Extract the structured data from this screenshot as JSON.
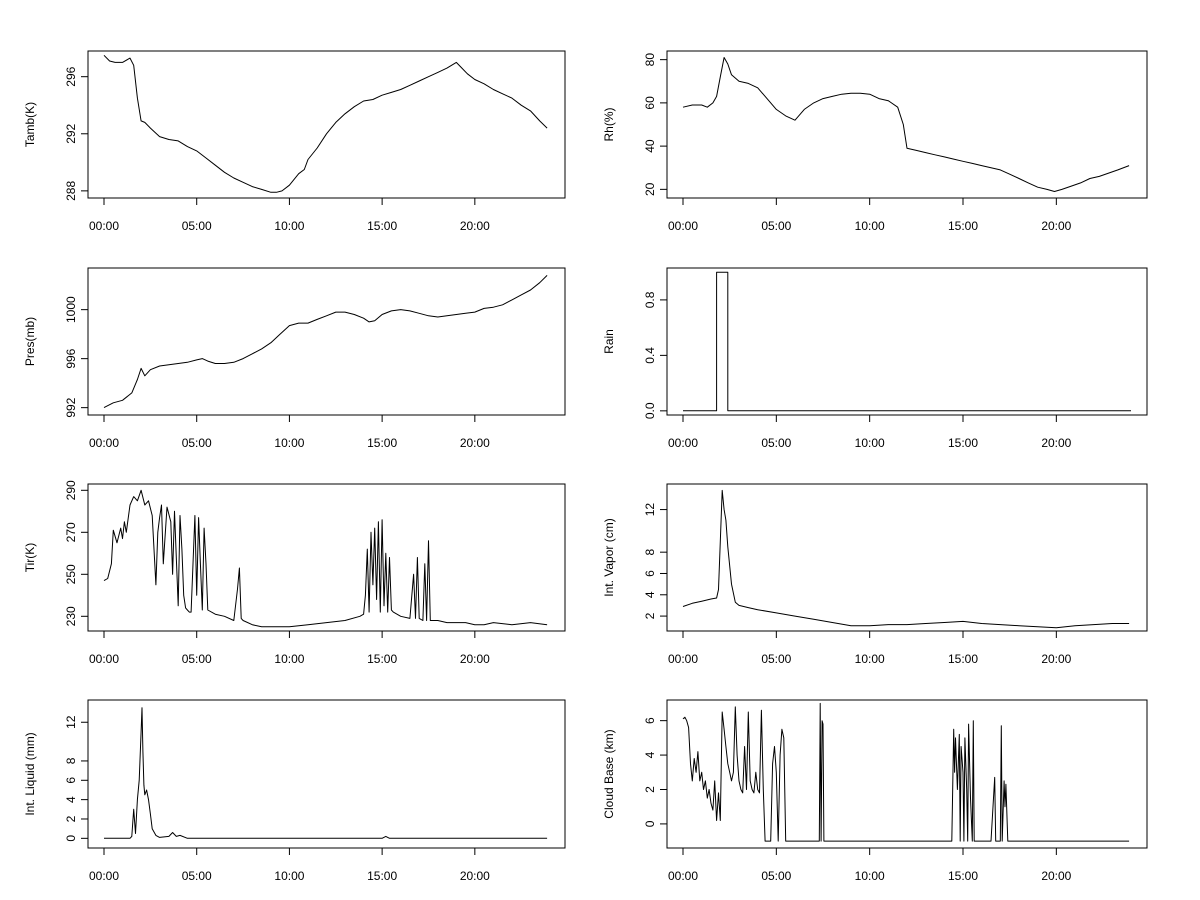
{
  "chart_data": [
    {
      "type": "line",
      "ylabel": "Tamb(K)",
      "xlim": [
        0,
        24
      ],
      "xticks": [
        0,
        5,
        10,
        15,
        20
      ],
      "xtick_labels": [
        "00:00",
        "05:00",
        "10:00",
        "15:00",
        "20:00"
      ],
      "ylim": [
        287.5,
        297.8
      ],
      "yticks": [
        288,
        292,
        296
      ],
      "ytick_labels": [
        "288",
        "292",
        "296"
      ],
      "x": [
        0,
        0.3,
        0.6,
        1.0,
        1.4,
        1.6,
        1.8,
        2.0,
        2.2,
        2.5,
        3.0,
        3.5,
        4.0,
        4.5,
        5.0,
        5.5,
        6.0,
        6.5,
        7.0,
        7.5,
        8.0,
        8.5,
        9.0,
        9.3,
        9.6,
        10.0,
        10.5,
        10.8,
        11.0,
        11.5,
        12.0,
        12.5,
        13.0,
        13.5,
        14.0,
        14.5,
        15.0,
        15.5,
        16.0,
        16.5,
        17.0,
        17.5,
        18.0,
        18.5,
        19.0,
        19.3,
        19.6,
        20.0,
        20.5,
        21.0,
        21.5,
        22.0,
        22.5,
        23.0,
        23.5,
        23.9
      ],
      "y": [
        297.5,
        297.1,
        297.0,
        297.0,
        297.3,
        296.8,
        294.5,
        292.9,
        292.8,
        292.4,
        291.8,
        291.6,
        291.5,
        291.1,
        290.8,
        290.3,
        289.8,
        289.3,
        288.9,
        288.6,
        288.3,
        288.1,
        287.9,
        287.9,
        288.0,
        288.4,
        289.2,
        289.5,
        290.2,
        291.0,
        292.0,
        292.8,
        293.4,
        293.9,
        294.3,
        294.4,
        294.7,
        294.9,
        295.1,
        295.4,
        295.7,
        296.0,
        296.3,
        296.6,
        297.0,
        296.6,
        296.2,
        295.8,
        295.5,
        295.1,
        294.8,
        294.5,
        294.0,
        293.6,
        292.9,
        292.4
      ]
    },
    {
      "type": "line",
      "ylabel": "Rh(%)",
      "xlim": [
        0,
        24
      ],
      "xticks": [
        0,
        5,
        10,
        15,
        20
      ],
      "xtick_labels": [
        "00:00",
        "05:00",
        "10:00",
        "15:00",
        "20:00"
      ],
      "ylim": [
        16,
        84
      ],
      "yticks": [
        20,
        40,
        60,
        80
      ],
      "ytick_labels": [
        "20",
        "40",
        "60",
        "80"
      ],
      "x": [
        0,
        0.5,
        1.0,
        1.3,
        1.6,
        1.8,
        2.0,
        2.2,
        2.4,
        2.6,
        3.0,
        3.5,
        4.0,
        4.5,
        5.0,
        5.5,
        6.0,
        6.5,
        7.0,
        7.5,
        8.0,
        8.5,
        9.0,
        9.5,
        10.0,
        10.5,
        11.0,
        11.5,
        11.8,
        12.0,
        12.5,
        13.0,
        13.5,
        14.0,
        14.5,
        15.0,
        15.5,
        16.0,
        16.5,
        17.0,
        17.5,
        18.0,
        18.5,
        19.0,
        19.5,
        19.9,
        20.3,
        20.8,
        21.3,
        21.8,
        22.3,
        22.8,
        23.3,
        23.9
      ],
      "y": [
        58,
        59,
        59,
        58,
        60,
        63,
        72,
        81,
        78,
        73,
        70,
        69,
        67,
        62,
        57,
        54,
        52,
        57,
        60,
        62,
        63,
        64,
        64.5,
        64.5,
        64,
        62,
        61,
        58,
        50,
        39,
        38,
        37,
        36,
        35,
        34,
        33,
        32,
        31,
        30,
        29,
        27,
        25,
        23,
        21,
        20,
        19,
        20,
        21.5,
        23,
        25,
        26,
        27.5,
        29,
        31
      ]
    },
    {
      "type": "line",
      "ylabel": "Pres(mb)",
      "xlim": [
        0,
        24
      ],
      "xticks": [
        0,
        5,
        10,
        15,
        20
      ],
      "xtick_labels": [
        "00:00",
        "05:00",
        "10:00",
        "15:00",
        "20:00"
      ],
      "ylim": [
        991.4,
        1003.4
      ],
      "yticks": [
        992,
        996,
        1000
      ],
      "ytick_labels": [
        "992",
        "996",
        "1000"
      ],
      "x": [
        0,
        0.5,
        1.0,
        1.5,
        1.8,
        2.0,
        2.2,
        2.5,
        3.0,
        3.5,
        4.0,
        4.5,
        5.0,
        5.3,
        5.6,
        6.0,
        6.5,
        7.0,
        7.5,
        8.0,
        8.5,
        9.0,
        9.5,
        10.0,
        10.5,
        11.0,
        11.5,
        12.0,
        12.5,
        13.0,
        13.5,
        14.0,
        14.3,
        14.6,
        15.0,
        15.5,
        16.0,
        16.5,
        17.0,
        17.5,
        18.0,
        18.5,
        19.0,
        19.5,
        20.0,
        20.5,
        21.0,
        21.5,
        22.0,
        22.5,
        23.0,
        23.5,
        23.9
      ],
      "y": [
        992.0,
        992.4,
        992.6,
        993.2,
        994.3,
        995.2,
        994.6,
        995.1,
        995.4,
        995.5,
        995.6,
        995.7,
        995.9,
        996.0,
        995.8,
        995.6,
        995.6,
        995.7,
        996.0,
        996.4,
        996.8,
        997.3,
        998.0,
        998.7,
        998.9,
        998.9,
        999.2,
        999.5,
        999.8,
        999.8,
        999.6,
        999.3,
        999.0,
        999.1,
        999.6,
        999.9,
        1000.0,
        999.9,
        999.7,
        999.5,
        999.4,
        999.5,
        999.6,
        999.7,
        999.8,
        1000.1,
        1000.2,
        1000.4,
        1000.8,
        1001.2,
        1001.6,
        1002.2,
        1002.8
      ]
    },
    {
      "type": "line",
      "ylabel": "Rain",
      "xlim": [
        0,
        24
      ],
      "xticks": [
        0,
        5,
        10,
        15,
        20
      ],
      "xtick_labels": [
        "00:00",
        "05:00",
        "10:00",
        "15:00",
        "20:00"
      ],
      "ylim": [
        -0.03,
        1.03
      ],
      "yticks": [
        0,
        0.4,
        0.8
      ],
      "ytick_labels": [
        "0.0",
        "0.4",
        "0.8"
      ],
      "x": [
        0,
        1.8,
        1.8,
        1.9,
        1.9,
        2.4,
        2.4,
        24.0
      ],
      "y": [
        0,
        0,
        1,
        1,
        1,
        1,
        0,
        0
      ]
    },
    {
      "type": "line",
      "ylabel": "Tir(K)",
      "xlim": [
        0,
        24
      ],
      "xticks": [
        0,
        5,
        10,
        15,
        20
      ],
      "xtick_labels": [
        "00:00",
        "05:00",
        "10:00",
        "15:00",
        "20:00"
      ],
      "ylim": [
        223,
        293
      ],
      "yticks": [
        230,
        250,
        270,
        290
      ],
      "ytick_labels": [
        "230",
        "250",
        "270",
        "290"
      ],
      "x": [
        0,
        0.2,
        0.4,
        0.5,
        0.7,
        0.9,
        1.0,
        1.1,
        1.2,
        1.4,
        1.6,
        1.8,
        2.0,
        2.2,
        2.4,
        2.6,
        2.8,
        2.9,
        3.0,
        3.1,
        3.2,
        3.4,
        3.6,
        3.7,
        3.8,
        4.0,
        4.1,
        4.2,
        4.3,
        4.4,
        4.5,
        4.6,
        4.7,
        4.9,
        5.0,
        5.1,
        5.2,
        5.3,
        5.4,
        5.5,
        5.6,
        6.0,
        6.5,
        7.0,
        7.2,
        7.3,
        7.4,
        7.5,
        8.0,
        8.5,
        9.0,
        9.5,
        10.0,
        11.0,
        12.0,
        13.0,
        13.8,
        14.0,
        14.1,
        14.2,
        14.3,
        14.4,
        14.5,
        14.6,
        14.7,
        14.8,
        14.9,
        15.0,
        15.1,
        15.2,
        15.3,
        15.4,
        15.5,
        15.6,
        16.0,
        16.5,
        16.7,
        16.8,
        16.9,
        17.0,
        17.2,
        17.3,
        17.4,
        17.5,
        17.6,
        18.0,
        18.5,
        19.0,
        19.5,
        20.0,
        20.5,
        21.0,
        22.0,
        23.0,
        23.9
      ],
      "y": [
        247,
        248,
        255,
        271,
        265,
        272,
        267,
        275,
        270,
        283,
        287,
        285,
        290,
        283,
        285,
        278,
        245,
        270,
        277,
        283,
        255,
        282,
        275,
        250,
        280,
        235,
        278,
        262,
        240,
        234,
        233,
        232,
        232,
        278,
        240,
        277,
        255,
        233,
        272,
        255,
        233,
        231,
        230,
        228,
        243,
        253,
        229,
        228,
        226,
        225,
        225,
        225,
        225,
        226,
        227,
        228,
        230,
        231,
        240,
        262,
        232,
        270,
        245,
        272,
        238,
        275,
        232,
        276,
        235,
        260,
        232,
        258,
        233,
        232,
        230,
        229,
        250,
        229,
        258,
        229,
        228,
        255,
        228,
        266,
        228,
        228,
        227,
        227,
        227,
        226,
        226,
        227,
        226,
        227,
        226
      ]
    },
    {
      "type": "line",
      "ylabel": "Int. Vapor (cm)",
      "xlim": [
        0,
        24
      ],
      "xticks": [
        0,
        5,
        10,
        15,
        20
      ],
      "xtick_labels": [
        "00:00",
        "05:00",
        "10:00",
        "15:00",
        "20:00"
      ],
      "ylim": [
        0.6,
        14.4
      ],
      "yticks": [
        2,
        4,
        6,
        8,
        12
      ],
      "ytick_labels": [
        "2",
        "4",
        "6",
        "8",
        "12"
      ],
      "x": [
        0,
        0.5,
        1.0,
        1.5,
        1.8,
        1.9,
        2.0,
        2.1,
        2.2,
        2.3,
        2.4,
        2.6,
        2.8,
        3.0,
        3.5,
        4.0,
        5.0,
        6.0,
        7.0,
        8.0,
        9.0,
        10.0,
        11.0,
        12.0,
        13.0,
        14.0,
        15.0,
        16.0,
        17.0,
        18.0,
        19.0,
        20.0,
        21.0,
        22.0,
        23.0,
        23.9
      ],
      "y": [
        2.9,
        3.2,
        3.4,
        3.6,
        3.7,
        4.5,
        9.0,
        13.8,
        12.0,
        11.0,
        8.5,
        5.0,
        3.3,
        3.0,
        2.8,
        2.6,
        2.3,
        2.0,
        1.7,
        1.4,
        1.1,
        1.1,
        1.2,
        1.2,
        1.3,
        1.4,
        1.5,
        1.3,
        1.2,
        1.1,
        1.0,
        0.9,
        1.1,
        1.2,
        1.3,
        1.3
      ]
    },
    {
      "type": "line",
      "ylabel": "Int. Liquid (mm)",
      "xlim": [
        0,
        24
      ],
      "xticks": [
        0,
        5,
        10,
        15,
        20
      ],
      "xtick_labels": [
        "00:00",
        "05:00",
        "10:00",
        "15:00",
        "20:00"
      ],
      "ylim": [
        -1.0,
        14.3
      ],
      "yticks": [
        0,
        2,
        4,
        6,
        8,
        12
      ],
      "ytick_labels": [
        "0",
        "2",
        "4",
        "6",
        "8",
        "12"
      ],
      "x": [
        0,
        1.4,
        1.5,
        1.6,
        1.7,
        1.8,
        1.9,
        2.0,
        2.05,
        2.1,
        2.15,
        2.2,
        2.3,
        2.4,
        2.5,
        2.6,
        2.8,
        3.0,
        3.5,
        3.7,
        3.9,
        4.1,
        4.5,
        8.0,
        15.0,
        15.2,
        15.4,
        20.0,
        23.9
      ],
      "y": [
        0,
        0,
        0.2,
        3.0,
        0.5,
        4.0,
        6.0,
        11.0,
        13.5,
        9.0,
        5.5,
        4.5,
        5.0,
        4.0,
        2.5,
        1.0,
        0.3,
        0.1,
        0.2,
        0.6,
        0.2,
        0.3,
        0,
        0,
        0,
        0.2,
        0,
        0,
        0
      ]
    },
    {
      "type": "line",
      "ylabel": "Cloud Base (km)",
      "xlim": [
        0,
        24
      ],
      "xticks": [
        0,
        5,
        10,
        15,
        20
      ],
      "xtick_labels": [
        "00:00",
        "05:00",
        "10:00",
        "15:00",
        "20:00"
      ],
      "ylim": [
        -1.4,
        7.2
      ],
      "yticks": [
        0,
        2,
        4,
        6
      ],
      "ytick_labels": [
        "0",
        "2",
        "4",
        "6"
      ],
      "x": [
        0,
        0.1,
        0.2,
        0.3,
        0.4,
        0.5,
        0.6,
        0.7,
        0.8,
        0.9,
        1.0,
        1.1,
        1.2,
        1.3,
        1.4,
        1.5,
        1.6,
        1.7,
        1.8,
        1.9,
        2.0,
        2.1,
        2.2,
        2.3,
        2.4,
        2.5,
        2.6,
        2.7,
        2.8,
        2.9,
        3.0,
        3.1,
        3.2,
        3.3,
        3.4,
        3.5,
        3.6,
        3.7,
        3.8,
        3.9,
        4.0,
        4.1,
        4.2,
        4.3,
        4.4,
        4.5,
        4.6,
        4.7,
        4.8,
        4.9,
        5.0,
        5.1,
        5.2,
        5.3,
        5.4,
        5.5,
        5.6,
        5.7,
        5.8,
        5.9,
        6.0,
        7.0,
        7.3,
        7.35,
        7.4,
        7.45,
        7.5,
        7.55,
        8.0,
        10.0,
        12.0,
        14.0,
        14.4,
        14.5,
        14.55,
        14.6,
        14.7,
        14.8,
        14.85,
        14.9,
        15.0,
        15.05,
        15.1,
        15.2,
        15.25,
        15.3,
        15.4,
        15.5,
        15.55,
        15.6,
        15.7,
        15.8,
        15.9,
        16.0,
        16.5,
        16.7,
        16.75,
        16.8,
        17.0,
        17.05,
        17.1,
        17.2,
        17.25,
        17.3,
        17.4,
        18.0,
        20.0,
        23.9
      ],
      "y": [
        6.1,
        6.2,
        6.0,
        5.6,
        3.5,
        2.5,
        3.8,
        3.0,
        4.2,
        2.5,
        3.0,
        2.0,
        2.5,
        1.5,
        2.0,
        1.2,
        0.8,
        2.5,
        0.2,
        1.8,
        0.2,
        6.5,
        5.5,
        4.5,
        3.5,
        3.0,
        2.5,
        3.0,
        6.8,
        4.0,
        2.5,
        2.0,
        1.8,
        4.5,
        2.0,
        6.5,
        2.5,
        2.0,
        1.8,
        3.0,
        2.0,
        1.8,
        6.6,
        2.0,
        -1.0,
        -1.0,
        -1.0,
        -1.0,
        3.5,
        4.5,
        3.0,
        -1.0,
        4.0,
        5.5,
        5.0,
        -1.0,
        -1.0,
        -1.0,
        -1.0,
        -1.0,
        -1.0,
        -1.0,
        -1.0,
        7.0,
        -1.0,
        6.0,
        5.8,
        -1.0,
        -1.0,
        -1.0,
        -1.0,
        -1.0,
        -1.0,
        5.5,
        3.0,
        5.0,
        2.0,
        5.2,
        -1.0,
        4.5,
        3.0,
        -1.0,
        5.0,
        2.0,
        -1.0,
        5.8,
        1.5,
        -1.0,
        6.0,
        -1.0,
        -1.0,
        -1.0,
        -1.0,
        -1.0,
        -1.0,
        2.7,
        -1.0,
        -1.0,
        -1.0,
        5.7,
        -1.0,
        2.5,
        1.0,
        2.3,
        -1.0,
        -1.0,
        -1.0,
        -1.0
      ]
    }
  ]
}
